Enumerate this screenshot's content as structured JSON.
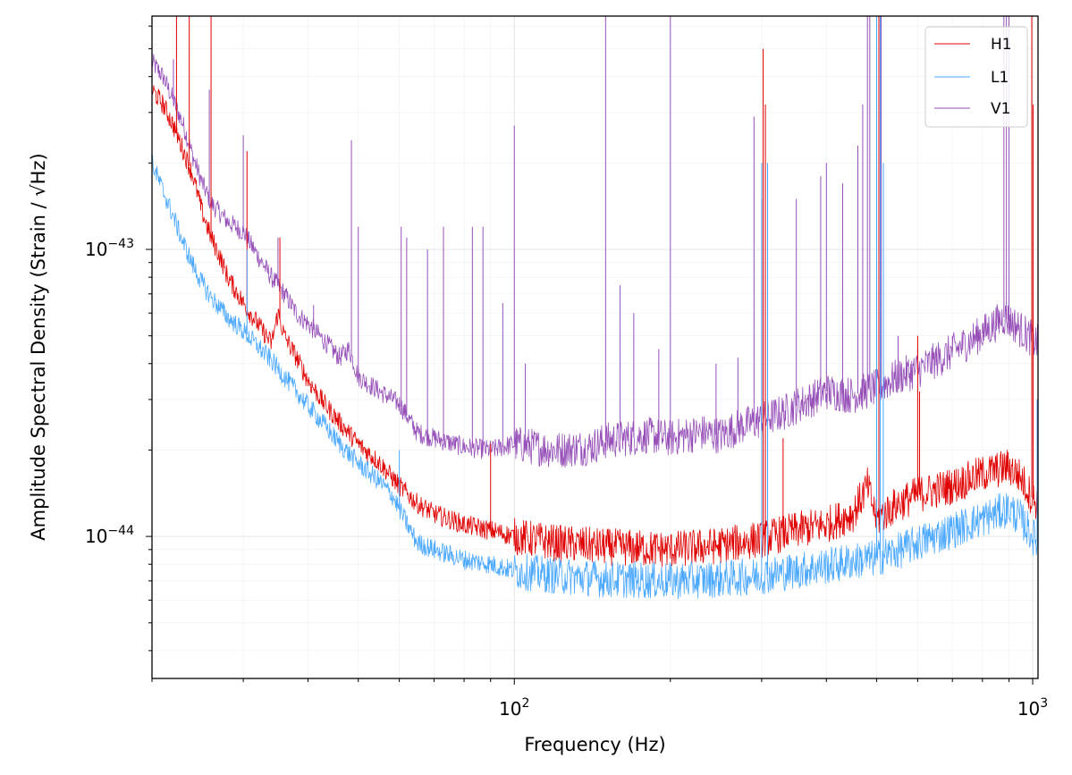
{
  "chart_data": {
    "type": "line",
    "xscale": "log",
    "yscale": "log",
    "xlabel": "Frequency (Hz)",
    "ylabel": "Amplitude Spectral Density (Strain / √Hz)",
    "xlim": [
      20,
      1024
    ],
    "ylim": [
      3.2e-45,
      6.5e-43
    ],
    "x_ticks": [
      {
        "value": 100,
        "base": "10",
        "exp": "2"
      },
      {
        "value": 1000,
        "base": "10",
        "exp": "3"
      }
    ],
    "y_ticks": [
      {
        "value": 1e-44,
        "base": "10",
        "exp": "−44"
      },
      {
        "value": 1e-43,
        "base": "10",
        "exp": "−43"
      }
    ],
    "grid": true,
    "legend_position": "top-right",
    "series": [
      {
        "name": "H1",
        "color": "#e00000",
        "points": [
          [
            20,
            3.6e-43
          ],
          [
            21,
            3.2e-43
          ],
          [
            22,
            2.7e-43
          ],
          [
            23,
            2.2e-43
          ],
          [
            24,
            1.8e-43
          ],
          [
            25,
            1.35e-43
          ],
          [
            26,
            1.1e-43
          ],
          [
            27,
            9.5e-44
          ],
          [
            28,
            8e-44
          ],
          [
            30,
            6.5e-44
          ],
          [
            32,
            5.5e-44
          ],
          [
            34,
            4.7e-44
          ],
          [
            35,
            6e-44
          ],
          [
            36,
            5e-44
          ],
          [
            38,
            4.2e-44
          ],
          [
            40,
            3.5e-44
          ],
          [
            43,
            2.9e-44
          ],
          [
            46,
            2.5e-44
          ],
          [
            50,
            2.1e-44
          ],
          [
            55,
            1.8e-44
          ],
          [
            60,
            1.5e-44
          ],
          [
            65,
            1.3e-44
          ],
          [
            70,
            1.2e-44
          ],
          [
            80,
            1.1e-44
          ],
          [
            90,
            1.05e-44
          ],
          [
            100,
            1e-44
          ],
          [
            120,
            9.5e-45
          ],
          [
            150,
            9.2e-45
          ],
          [
            200,
            9e-45
          ],
          [
            250,
            9.3e-45
          ],
          [
            300,
            9.8e-45
          ],
          [
            350,
            1.05e-44
          ],
          [
            400,
            1.1e-44
          ],
          [
            450,
            1.2e-44
          ],
          [
            480,
            1.5e-44
          ],
          [
            500,
            1.15e-44
          ],
          [
            550,
            1.3e-44
          ],
          [
            600,
            1.4e-44
          ],
          [
            700,
            1.5e-44
          ],
          [
            800,
            1.65e-44
          ],
          [
            900,
            1.75e-44
          ],
          [
            950,
            1.6e-44
          ],
          [
            1000,
            1.35e-44
          ],
          [
            1024,
            1.3e-44
          ]
        ],
        "spikes": [
          [
            22.3,
            6.5e-43
          ],
          [
            23.6,
            6.5e-43
          ],
          [
            26.0,
            6.5e-43
          ],
          [
            30.5,
            2.2e-43
          ],
          [
            35.3,
            1.1e-43
          ],
          [
            90,
            2.1e-44
          ],
          [
            302,
            5e-43
          ],
          [
            305,
            3.2e-43
          ],
          [
            330,
            2.2e-44
          ],
          [
            500,
            6.5e-43
          ],
          [
            505,
            6.5e-43
          ],
          [
            600,
            5e-44
          ],
          [
            605,
            3.2e-44
          ],
          [
            996,
            6.5e-43
          ],
          [
            1002,
            3.2e-43
          ]
        ]
      },
      {
        "name": "L1",
        "color": "#4aa8ff",
        "points": [
          [
            20,
            2e-43
          ],
          [
            21,
            1.6e-43
          ],
          [
            22,
            1.3e-43
          ],
          [
            23,
            1.05e-43
          ],
          [
            24,
            8.8e-44
          ],
          [
            25,
            7.6e-44
          ],
          [
            26,
            6.8e-44
          ],
          [
            28,
            5.8e-44
          ],
          [
            30,
            5.2e-44
          ],
          [
            32,
            4.6e-44
          ],
          [
            34,
            4.1e-44
          ],
          [
            36,
            3.6e-44
          ],
          [
            38,
            3.2e-44
          ],
          [
            40,
            2.85e-44
          ],
          [
            43,
            2.45e-44
          ],
          [
            46,
            2.1e-44
          ],
          [
            50,
            1.8e-44
          ],
          [
            55,
            1.55e-44
          ],
          [
            58,
            1.4e-44
          ],
          [
            60,
            1.25e-44
          ],
          [
            63,
            1.05e-44
          ],
          [
            65,
            9.5e-45
          ],
          [
            70,
            9e-45
          ],
          [
            80,
            8.3e-45
          ],
          [
            90,
            8e-45
          ],
          [
            100,
            7.6e-45
          ],
          [
            120,
            7.3e-45
          ],
          [
            150,
            7.1e-45
          ],
          [
            200,
            7e-45
          ],
          [
            250,
            7.1e-45
          ],
          [
            300,
            7.3e-45
          ],
          [
            350,
            7.6e-45
          ],
          [
            400,
            7.9e-45
          ],
          [
            450,
            8.2e-45
          ],
          [
            500,
            8.4e-45
          ],
          [
            550,
            8.9e-45
          ],
          [
            600,
            9.5e-45
          ],
          [
            700,
            1.05e-44
          ],
          [
            800,
            1.15e-44
          ],
          [
            900,
            1.25e-44
          ],
          [
            950,
            1.15e-44
          ],
          [
            1000,
            1e-44
          ],
          [
            1024,
            9.5e-45
          ]
        ],
        "spikes": [
          [
            30.5,
            1e-43
          ],
          [
            60,
            2e-44
          ],
          [
            300,
            2e-43
          ],
          [
            308,
            2e-43
          ],
          [
            500,
            6.5e-43
          ],
          [
            508,
            6.5e-43
          ],
          [
            515,
            2e-43
          ],
          [
            1020,
            3e-44
          ]
        ]
      },
      {
        "name": "V1",
        "color": "#9650b8",
        "points": [
          [
            20,
            4.5e-43
          ],
          [
            21,
            4e-43
          ],
          [
            22,
            3.3e-43
          ],
          [
            23,
            2.7e-43
          ],
          [
            24,
            2.1e-43
          ],
          [
            25,
            1.7e-43
          ],
          [
            26,
            1.45e-43
          ],
          [
            28,
            1.25e-43
          ],
          [
            30,
            1.15e-43
          ],
          [
            32,
            9.5e-44
          ],
          [
            34,
            8e-44
          ],
          [
            36,
            7e-44
          ],
          [
            38,
            6e-44
          ],
          [
            40,
            5.5e-44
          ],
          [
            43,
            4.8e-44
          ],
          [
            46,
            4.2e-44
          ],
          [
            48,
            4.5e-44
          ],
          [
            50,
            3.6e-44
          ],
          [
            55,
            3.2e-44
          ],
          [
            60,
            2.9e-44
          ],
          [
            65,
            2.3e-44
          ],
          [
            70,
            2.2e-44
          ],
          [
            80,
            2.05e-44
          ],
          [
            90,
            2e-44
          ],
          [
            100,
            2.1e-44
          ],
          [
            120,
            2e-44
          ],
          [
            140,
            2.05e-44
          ],
          [
            150,
            2.15e-44
          ],
          [
            180,
            2.25e-44
          ],
          [
            200,
            2.2e-44
          ],
          [
            230,
            2.3e-44
          ],
          [
            250,
            2.25e-44
          ],
          [
            270,
            2.4e-44
          ],
          [
            300,
            2.55e-44
          ],
          [
            330,
            2.7e-44
          ],
          [
            350,
            2.85e-44
          ],
          [
            380,
            3.05e-44
          ],
          [
            400,
            3.2e-44
          ],
          [
            450,
            3.1e-44
          ],
          [
            500,
            3.3e-44
          ],
          [
            550,
            3.6e-44
          ],
          [
            600,
            3.8e-44
          ],
          [
            700,
            4.4e-44
          ],
          [
            800,
            5.1e-44
          ],
          [
            880,
            5.8e-44
          ],
          [
            920,
            5.5e-44
          ],
          [
            980,
            5e-44
          ],
          [
            1024,
            4.7e-44
          ]
        ],
        "spikes": [
          [
            22,
            4.6e-43
          ],
          [
            25.8,
            3.6e-43
          ],
          [
            30,
            2.5e-43
          ],
          [
            35,
            1.1e-43
          ],
          [
            41,
            6.4e-44
          ],
          [
            48.5,
            2.4e-43
          ],
          [
            50,
            1.2e-43
          ],
          [
            60.5,
            1.2e-43
          ],
          [
            62,
            1.1e-43
          ],
          [
            68,
            1e-43
          ],
          [
            73,
            1.2e-43
          ],
          [
            83,
            1.2e-43
          ],
          [
            87,
            1.2e-43
          ],
          [
            95,
            6.5e-44
          ],
          [
            100,
            2.7e-43
          ],
          [
            105,
            4e-44
          ],
          [
            150,
            6.5e-43
          ],
          [
            160,
            7.5e-44
          ],
          [
            170,
            6e-44
          ],
          [
            190,
            4.5e-44
          ],
          [
            200,
            6.5e-43
          ],
          [
            245,
            4e-44
          ],
          [
            270,
            4.2e-44
          ],
          [
            290,
            2.9e-43
          ],
          [
            300,
            1.5e-43
          ],
          [
            350,
            1.5e-43
          ],
          [
            390,
            1.8e-43
          ],
          [
            400,
            2e-43
          ],
          [
            430,
            1.7e-43
          ],
          [
            460,
            2.3e-43
          ],
          [
            470,
            3.2e-43
          ],
          [
            480,
            6.5e-43
          ],
          [
            485,
            6.5e-43
          ],
          [
            500,
            6.5e-43
          ],
          [
            510,
            6.5e-43
          ],
          [
            550,
            5e-44
          ],
          [
            600,
            4.5e-44
          ],
          [
            700,
            5e-44
          ],
          [
            800,
            5.5e-44
          ],
          [
            880,
            6.5e-43
          ],
          [
            890,
            6.5e-43
          ],
          [
            900,
            6.5e-43
          ]
        ]
      }
    ]
  }
}
